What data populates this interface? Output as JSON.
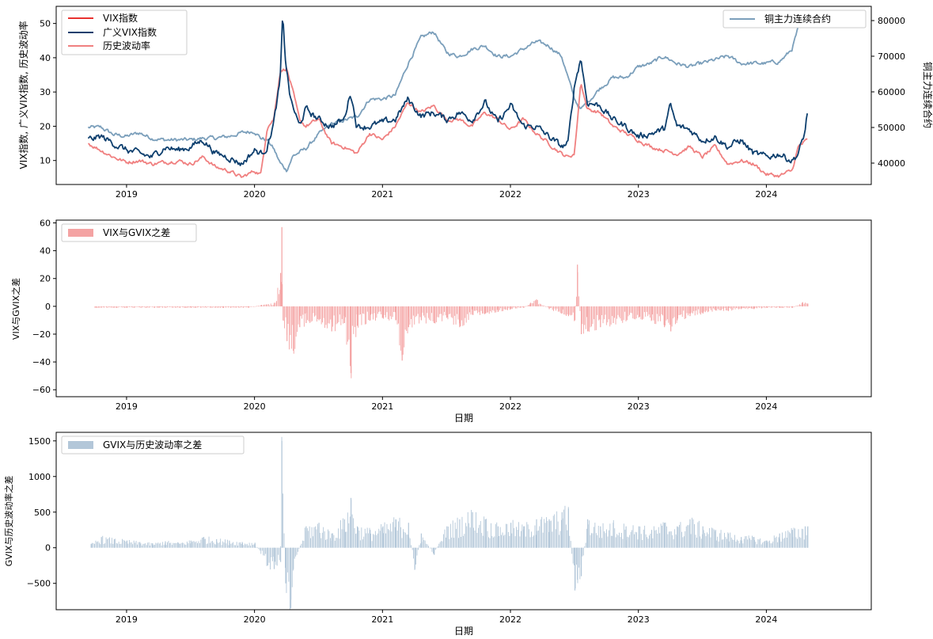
{
  "chart_data": [
    {
      "type": "line",
      "ylabel_left": "VIX指数, 广义VIX指数, 历史波动率",
      "ylabel_right": "铜主力连续合约",
      "xticks": [
        "2019",
        "2020",
        "2021",
        "2022",
        "2023",
        "2024"
      ],
      "xlim": [
        2018.45,
        2024.82
      ],
      "ylim_left": [
        3,
        55
      ],
      "ylim_right": [
        34000,
        84000
      ],
      "yticks_left": [
        10,
        20,
        30,
        40,
        50
      ],
      "yticks_right": [
        40000,
        50000,
        60000,
        70000,
        80000
      ],
      "legend_left": [
        "VIX指数",
        "广义VIX指数",
        "历史波动率"
      ],
      "legend_right": [
        "铜主力连续合约"
      ],
      "colors": {
        "vix": "#e8312f",
        "gvix": "#0d3f6e",
        "hv": "#f08080",
        "copper": "#7b9fbb"
      },
      "series": [
        {
          "name": "历史波动率",
          "axis": "left",
          "x": [
            2018.7,
            2018.8,
            2018.9,
            2019.0,
            2019.1,
            2019.2,
            2019.3,
            2019.4,
            2019.5,
            2019.6,
            2019.7,
            2019.8,
            2019.9,
            2020.0,
            2020.05,
            2020.1,
            2020.15,
            2020.2,
            2020.25,
            2020.3,
            2020.35,
            2020.4,
            2020.5,
            2020.6,
            2020.7,
            2020.8,
            2020.9,
            2021.0,
            2021.1,
            2021.2,
            2021.3,
            2021.4,
            2021.5,
            2021.6,
            2021.7,
            2021.8,
            2021.9,
            2022.0,
            2022.1,
            2022.2,
            2022.3,
            2022.4,
            2022.45,
            2022.5,
            2022.55,
            2022.6,
            2022.7,
            2022.8,
            2022.9,
            2023.0,
            2023.1,
            2023.2,
            2023.3,
            2023.4,
            2023.5,
            2023.6,
            2023.7,
            2023.8,
            2023.9,
            2024.0,
            2024.1,
            2024.2,
            2024.25,
            2024.32
          ],
          "y": [
            15,
            13,
            11,
            9.5,
            10,
            9,
            9.5,
            10,
            9,
            11,
            8,
            7,
            5,
            7,
            6,
            20,
            22,
            36,
            37,
            30,
            22,
            20,
            22,
            15,
            14,
            12,
            18,
            16,
            20,
            27,
            24,
            26,
            22,
            22,
            20,
            24,
            22,
            19,
            22,
            18,
            15,
            12,
            11,
            12,
            33,
            25,
            24,
            20,
            18,
            16,
            14,
            13,
            12,
            14,
            11,
            14,
            9,
            10,
            9,
            6,
            5.5,
            7,
            14,
            16
          ]
        },
        {
          "name": "广义VIX指数",
          "axis": "left",
          "x": [
            2018.7,
            2018.8,
            2018.9,
            2019.0,
            2019.1,
            2019.2,
            2019.3,
            2019.4,
            2019.5,
            2019.6,
            2019.7,
            2019.8,
            2019.9,
            2020.0,
            2020.05,
            2020.1,
            2020.15,
            2020.2,
            2020.22,
            2020.24,
            2020.28,
            2020.35,
            2020.4,
            2020.5,
            2020.6,
            2020.7,
            2020.75,
            2020.8,
            2020.9,
            2021.0,
            2021.1,
            2021.2,
            2021.3,
            2021.4,
            2021.5,
            2021.6,
            2021.7,
            2021.8,
            2021.9,
            2022.0,
            2022.1,
            2022.2,
            2022.3,
            2022.4,
            2022.45,
            2022.5,
            2022.55,
            2022.6,
            2022.7,
            2022.8,
            2022.9,
            2023.0,
            2023.1,
            2023.2,
            2023.25,
            2023.3,
            2023.4,
            2023.5,
            2023.6,
            2023.7,
            2023.8,
            2023.9,
            2024.0,
            2024.1,
            2024.2,
            2024.25,
            2024.3,
            2024.32
          ],
          "y": [
            16,
            17,
            15,
            13,
            12,
            11,
            14,
            13,
            14,
            16,
            12,
            11,
            9,
            13,
            12,
            14,
            21,
            33,
            52,
            40,
            28,
            20,
            25,
            22,
            20,
            22,
            30,
            20,
            20,
            21,
            22,
            28,
            23,
            24,
            22,
            24,
            22,
            27,
            21,
            26,
            20,
            20,
            17,
            14,
            15,
            32,
            40,
            27,
            26,
            22,
            20,
            17,
            18,
            19,
            26,
            20,
            19,
            16,
            17,
            14,
            16,
            12,
            11,
            12,
            10,
            12,
            18,
            24
          ]
        },
        {
          "name": "铜主力连续合约",
          "axis": "right",
          "x": [
            2018.7,
            2018.8,
            2018.9,
            2019.0,
            2019.1,
            2019.2,
            2019.3,
            2019.4,
            2019.5,
            2019.6,
            2019.7,
            2019.8,
            2019.9,
            2020.0,
            2020.05,
            2020.1,
            2020.15,
            2020.2,
            2020.25,
            2020.3,
            2020.4,
            2020.5,
            2020.6,
            2020.7,
            2020.8,
            2020.9,
            2021.0,
            2021.1,
            2021.2,
            2021.3,
            2021.4,
            2021.5,
            2021.6,
            2021.7,
            2021.8,
            2021.9,
            2022.0,
            2022.1,
            2022.2,
            2022.3,
            2022.4,
            2022.5,
            2022.55,
            2022.6,
            2022.7,
            2022.8,
            2022.9,
            2023.0,
            2023.1,
            2023.2,
            2023.3,
            2023.4,
            2023.5,
            2023.6,
            2023.7,
            2023.8,
            2023.9,
            2024.0,
            2024.1,
            2024.15,
            2024.2,
            2024.25,
            2024.32
          ],
          "y": [
            50000,
            50000,
            48000,
            47500,
            48500,
            47000,
            46500,
            46500,
            46500,
            47000,
            47000,
            47500,
            48500,
            49000,
            47000,
            46500,
            44000,
            40000,
            38000,
            42000,
            44000,
            48000,
            51000,
            52000,
            53000,
            58000,
            58000,
            59000,
            68000,
            75000,
            77000,
            71000,
            70000,
            72000,
            73000,
            70000,
            70000,
            72000,
            74000,
            73000,
            70000,
            58000,
            55000,
            57000,
            61000,
            64000,
            64000,
            67000,
            68000,
            70000,
            68000,
            67000,
            68000,
            69000,
            70000,
            68000,
            68000,
            68000,
            68500,
            70000,
            72000,
            78000,
            81000
          ]
        }
      ]
    },
    {
      "type": "bar",
      "series_name": "VIX与GVIX之差",
      "color": "#f4a3a3",
      "ylabel": "VIX与GVIX之差",
      "xlabel": "日期",
      "xticks": [
        "2019",
        "2020",
        "2021",
        "2022",
        "2023",
        "2024"
      ],
      "ylim": [
        -65,
        62
      ],
      "yticks": [
        -60,
        -40,
        -20,
        0,
        20,
        40,
        60
      ],
      "x": [
        2018.75,
        2019.0,
        2019.25,
        2019.5,
        2019.75,
        2019.95,
        2020.05,
        2020.15,
        2020.2,
        2020.21,
        2020.22,
        2020.25,
        2020.3,
        2020.35,
        2020.4,
        2020.5,
        2020.6,
        2020.7,
        2020.75,
        2020.8,
        2020.9,
        2021.0,
        2021.1,
        2021.15,
        2021.2,
        2021.3,
        2021.4,
        2021.5,
        2021.6,
        2021.7,
        2021.8,
        2021.9,
        2022.0,
        2022.1,
        2022.15,
        2022.2,
        2022.3,
        2022.4,
        2022.45,
        2022.5,
        2022.52,
        2022.55,
        2022.6,
        2022.7,
        2022.8,
        2022.9,
        2023.0,
        2023.1,
        2023.2,
        2023.25,
        2023.3,
        2023.4,
        2023.5,
        2023.6,
        2023.7,
        2023.8,
        2023.9,
        2024.0,
        2024.1,
        2024.2,
        2024.28,
        2024.32
      ],
      "y": [
        -1,
        -1,
        -1,
        -1,
        -1,
        -1,
        1,
        2,
        24,
        57,
        -10,
        -25,
        -32,
        -15,
        -12,
        -10,
        -18,
        -12,
        -48,
        -14,
        -10,
        -8,
        -10,
        -39,
        -15,
        -10,
        -12,
        -8,
        -15,
        -6,
        -5,
        -4,
        -2,
        -1,
        2,
        5,
        -2,
        -5,
        -7,
        -10,
        30,
        -20,
        -18,
        -15,
        -12,
        -10,
        -8,
        -10,
        -15,
        -18,
        -10,
        -7,
        -5,
        -3,
        -3,
        -2,
        -2,
        -1,
        -1,
        -1,
        3,
        2
      ]
    },
    {
      "type": "bar",
      "series_name": "GVIX与历史波动率之差",
      "color": "#b3c7d9",
      "ylabel": "GVIX与历史波动率之差",
      "xlabel": "日期",
      "xticks": [
        "2019",
        "2020",
        "2021",
        "2022",
        "2023",
        "2024"
      ],
      "ylim": [
        -870,
        1620
      ],
      "yticks": [
        -500,
        0,
        500,
        1000,
        1500
      ],
      "x": [
        2018.72,
        2018.8,
        2018.9,
        2019.0,
        2019.1,
        2019.2,
        2019.3,
        2019.4,
        2019.5,
        2019.6,
        2019.7,
        2019.8,
        2019.9,
        2020.0,
        2020.1,
        2020.15,
        2020.2,
        2020.21,
        2020.24,
        2020.28,
        2020.3,
        2020.4,
        2020.5,
        2020.6,
        2020.7,
        2020.75,
        2020.8,
        2020.9,
        2021.0,
        2021.1,
        2021.2,
        2021.25,
        2021.3,
        2021.4,
        2021.5,
        2021.6,
        2021.7,
        2021.8,
        2021.9,
        2022.0,
        2022.1,
        2022.2,
        2022.3,
        2022.4,
        2022.45,
        2022.5,
        2022.52,
        2022.55,
        2022.6,
        2022.7,
        2022.8,
        2022.9,
        2023.0,
        2023.1,
        2023.2,
        2023.3,
        2023.4,
        2023.5,
        2023.6,
        2023.7,
        2023.8,
        2023.9,
        2024.0,
        2024.1,
        2024.2,
        2024.3,
        2024.32
      ],
      "y": [
        50,
        150,
        120,
        100,
        80,
        60,
        90,
        70,
        100,
        150,
        120,
        100,
        80,
        70,
        -250,
        -300,
        -200,
        1500,
        -500,
        -850,
        -300,
        300,
        350,
        200,
        400,
        700,
        300,
        250,
        300,
        400,
        350,
        -300,
        200,
        -100,
        300,
        400,
        500,
        400,
        300,
        350,
        300,
        400,
        400,
        500,
        550,
        -600,
        -450,
        -400,
        400,
        300,
        350,
        300,
        300,
        250,
        350,
        300,
        400,
        300,
        250,
        200,
        150,
        150,
        100,
        200,
        250,
        300,
        300
      ]
    }
  ]
}
